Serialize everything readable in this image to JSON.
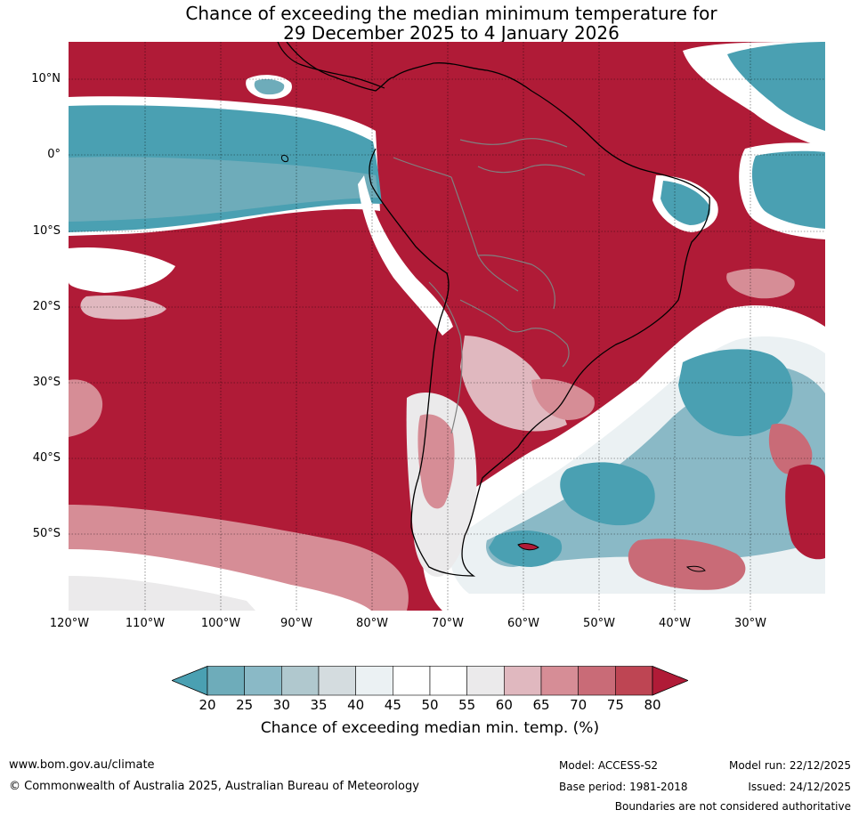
{
  "title": {
    "line1": "Chance of exceeding the median minimum temperature for",
    "line2": "29 December 2025 to 4 January 2026"
  },
  "axes": {
    "lat_labels": [
      "10°N",
      "0°",
      "10°S",
      "20°S",
      "30°S",
      "40°S",
      "50°S"
    ],
    "lon_labels": [
      "120°W",
      "110°W",
      "100°W",
      "90°W",
      "80°W",
      "70°W",
      "60°W",
      "50°W",
      "40°W",
      "30°W"
    ]
  },
  "colorbar": {
    "ticks": [
      "20",
      "25",
      "30",
      "35",
      "40",
      "45",
      "50",
      "55",
      "60",
      "65",
      "70",
      "75",
      "80"
    ],
    "colors": [
      "#4aa0b2",
      "#6eacba",
      "#8ab9c6",
      "#b0c8ce",
      "#d4dcdf",
      "#ebf1f3",
      "#ffffff",
      "#ffffff",
      "#ebeaeb",
      "#e0b8bf",
      "#d68d96",
      "#c96b77",
      "#be4553",
      "#b01b37"
    ],
    "label": "Chance of exceeding median min. temp. (%)"
  },
  "footer": {
    "website": "www.bom.gov.au/climate",
    "copyright": "© Commonwealth of Australia 2025, Australian Bureau of Meteorology",
    "model": "Model: ACCESS-S2",
    "base_period": "Base period: 1981-2018",
    "model_run": "Model run: 22/12/2025",
    "issued": "Issued: 24/12/2025",
    "disclaimer": "Boundaries are not considered authoritative"
  }
}
